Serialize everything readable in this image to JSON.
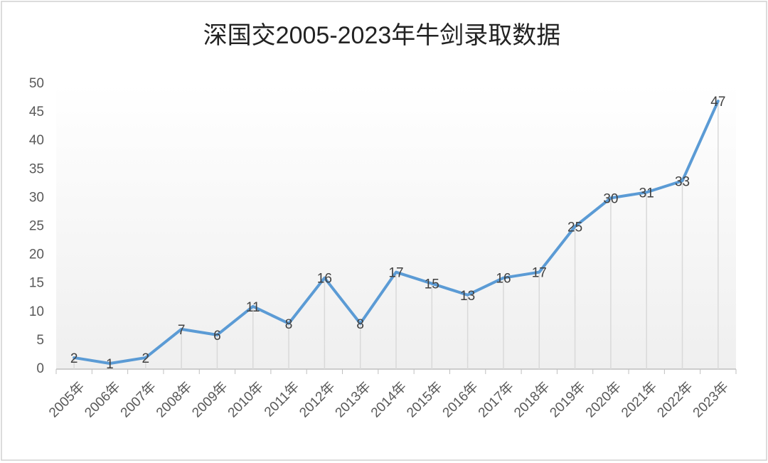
{
  "chart_data": {
    "type": "line",
    "title": "深国交2005-2023年牛剑录取数据",
    "categories": [
      "2005年",
      "2006年",
      "2007年",
      "2008年",
      "2009年",
      "2010年",
      "2011年",
      "2012年",
      "2013年",
      "2014年",
      "2015年",
      "2016年",
      "2017年",
      "2018年",
      "2019年",
      "2020年",
      "2021年",
      "2022年",
      "2023年"
    ],
    "values": [
      2,
      1,
      2,
      7,
      6,
      11,
      8,
      16,
      8,
      17,
      15,
      13,
      16,
      17,
      25,
      30,
      31,
      33,
      47
    ],
    "color": "#5b9bd5",
    "ylim": [
      0,
      50
    ],
    "yticks": [
      0,
      5,
      10,
      15,
      20,
      25,
      30,
      35,
      40,
      45,
      50
    ],
    "grid": false
  }
}
